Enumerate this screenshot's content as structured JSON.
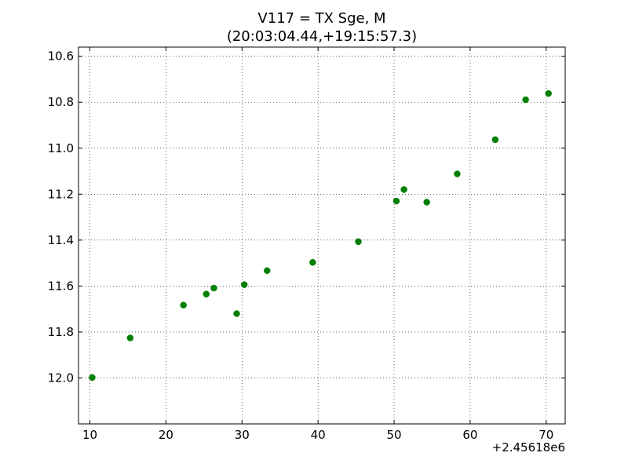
{
  "chart_data": {
    "type": "scatter",
    "title_line1": "V117 = TX Sge, M",
    "title_line2": "(20:03:04.44,+19:15:57.3)",
    "xlabel": "",
    "ylabel": "",
    "x_offset_label": "+2.45618e6",
    "xlim": [
      8.5,
      72.5
    ],
    "ylim": [
      12.2,
      10.56
    ],
    "y_inverted": true,
    "x_ticks": [
      10,
      20,
      30,
      40,
      50,
      60,
      70
    ],
    "y_ticks": [
      10.6,
      10.8,
      11.0,
      11.2,
      11.4,
      11.6,
      11.8,
      12.0
    ],
    "x_tick_labels": [
      "10",
      "20",
      "30",
      "40",
      "50",
      "60",
      "70"
    ],
    "y_tick_labels": [
      "10.6",
      "10.8",
      "11.0",
      "11.2",
      "11.4",
      "11.6",
      "11.8",
      "12.0"
    ],
    "grid": true,
    "marker_color": "#007f00",
    "series": [
      {
        "x": [
          10.3,
          15.3,
          22.3,
          25.3,
          26.3,
          29.3,
          30.3,
          33.3,
          39.3,
          45.3,
          50.3,
          51.3,
          54.3,
          58.3,
          63.3,
          67.3,
          70.3
        ],
        "y": [
          11.998,
          11.826,
          11.683,
          11.635,
          11.609,
          11.72,
          11.594,
          11.533,
          11.497,
          11.407,
          11.23,
          11.18,
          11.235,
          11.112,
          10.963,
          10.789,
          10.762
        ]
      }
    ]
  }
}
